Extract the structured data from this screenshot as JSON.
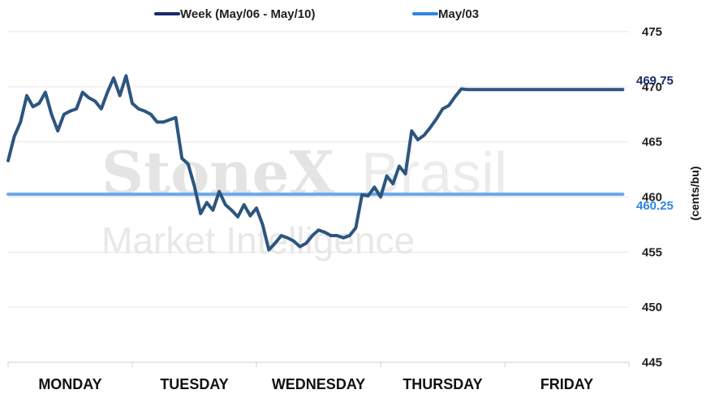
{
  "chart_data": {
    "type": "line",
    "ylabel": "(cents/bu)",
    "ylim": [
      445,
      475
    ],
    "yticks": [
      445,
      450,
      455,
      460,
      465,
      470,
      475
    ],
    "categories": [
      "MONDAY",
      "TUESDAY",
      "WEDNESDAY",
      "THURSDAY",
      "FRIDAY"
    ],
    "watermark": [
      "StoneX",
      "Brasil",
      "Market Intelligence"
    ],
    "series": [
      {
        "name": "Week (May/06 - May/10)",
        "color": "#1b2a6b",
        "line_color": "#2c5580",
        "end_label": "469.75",
        "x": [
          0,
          0.05,
          0.1,
          0.15,
          0.2,
          0.25,
          0.3,
          0.35,
          0.4,
          0.45,
          0.5,
          0.55,
          0.6,
          0.65,
          0.7,
          0.75,
          0.8,
          0.85,
          0.9,
          0.95,
          1.0,
          1.05,
          1.1,
          1.15,
          1.2,
          1.25,
          1.3,
          1.35,
          1.4,
          1.45,
          1.5,
          1.55,
          1.6,
          1.65,
          1.7,
          1.75,
          1.8,
          1.85,
          1.9,
          1.95,
          2.0,
          2.05,
          2.1,
          2.15,
          2.2,
          2.25,
          2.3,
          2.35,
          2.4,
          2.45,
          2.5,
          2.55,
          2.6,
          2.65,
          2.7,
          2.75,
          2.8,
          2.85,
          2.9,
          2.95,
          3.0,
          3.05,
          3.1,
          3.15,
          3.2,
          3.25,
          3.3,
          3.35,
          3.4,
          3.45,
          3.5,
          3.55,
          3.6,
          3.65,
          3.7,
          3.75,
          3.8,
          3.85,
          3.9,
          3.95,
          4.0,
          4.05,
          4.1,
          4.15,
          4.2,
          4.25,
          4.3,
          4.35,
          4.4,
          4.45,
          4.5,
          4.55,
          4.6,
          4.65,
          4.7,
          4.75,
          4.8,
          4.85,
          4.9,
          4.95
        ],
        "values": [
          463.3,
          465.5,
          466.8,
          469.2,
          468.2,
          468.5,
          469.5,
          467.5,
          466.0,
          467.5,
          467.8,
          468.0,
          469.5,
          469.0,
          468.7,
          468.0,
          469.5,
          470.8,
          469.2,
          471.0,
          468.5,
          468.0,
          467.8,
          467.5,
          466.8,
          466.8,
          467.0,
          467.2,
          463.5,
          463.0,
          461.0,
          458.5,
          459.5,
          458.8,
          460.5,
          459.3,
          458.8,
          458.2,
          459.3,
          458.3,
          459.0,
          457.5,
          455.2,
          455.8,
          456.5,
          456.3,
          456.0,
          455.5,
          455.8,
          456.5,
          457.0,
          456.8,
          456.5,
          456.5,
          456.3,
          456.5,
          457.2,
          460.2,
          460.1,
          460.9,
          460.0,
          461.9,
          461.2,
          462.8,
          462.1,
          466.0,
          465.2,
          465.6,
          466.3,
          467.1,
          468.0,
          468.3,
          469.1,
          469.8,
          469.75,
          469.75,
          469.75,
          469.75,
          469.75,
          469.75,
          469.75,
          469.75,
          469.75,
          469.75,
          469.75,
          469.75,
          469.75,
          469.75,
          469.75,
          469.75,
          469.75,
          469.75,
          469.75,
          469.75,
          469.75,
          469.75,
          469.75,
          469.75,
          469.75,
          469.75
        ]
      },
      {
        "name": "May/03",
        "color": "#2e86e6",
        "line_color": "#6aa8ea",
        "end_label": "460.25",
        "x": [
          0,
          4.95
        ],
        "values": [
          460.25,
          460.25
        ]
      }
    ]
  }
}
